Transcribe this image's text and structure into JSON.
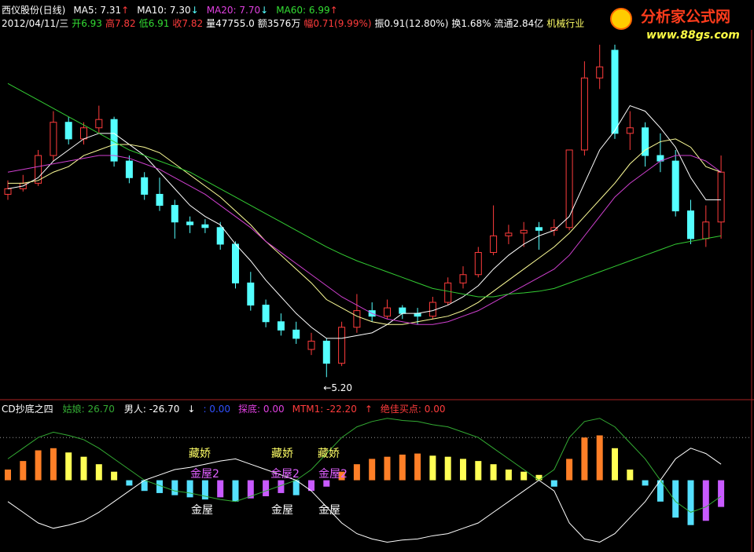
{
  "header": {
    "title": "西仪股份(日线)",
    "ma": [
      {
        "text": "MA5: 7.31",
        "arrow": "↑",
        "color": "#ffffff",
        "arrow_color": "#ff3c3c"
      },
      {
        "text": "MA10: 7.30",
        "arrow": "↓",
        "color": "#ffffff",
        "arrow_color": "#54ffff"
      },
      {
        "text": "MA20: 7.70",
        "arrow": "↓",
        "color": "#e040e0",
        "arrow_color": "#54ffff"
      },
      {
        "text": "MA60: 6.99",
        "arrow": "↑",
        "color": "#33dd33",
        "arrow_color": "#ff3c3c"
      }
    ],
    "quote": [
      {
        "text": "2012/04/11/三",
        "color": "#ffffff"
      },
      {
        "text": "开6.93",
        "color": "#33dd33"
      },
      {
        "text": "高7.82",
        "color": "#ff3c3c"
      },
      {
        "text": "低6.91",
        "color": "#33dd33"
      },
      {
        "text": "收7.82",
        "color": "#ff3c3c"
      },
      {
        "text": "量47755.0",
        "color": "#ffffff"
      },
      {
        "text": "额3576万",
        "color": "#ffffff"
      },
      {
        "text": "幅0.71(9.99%)",
        "color": "#ff3c3c"
      },
      {
        "text": "振0.91(12.80%)",
        "color": "#ffffff"
      },
      {
        "text": "换1.68%",
        "color": "#ffffff"
      },
      {
        "text": "流通2.84亿",
        "color": "#ffffff"
      },
      {
        "text": "机械行业",
        "color": "#ffff66"
      }
    ]
  },
  "logo": {
    "name": "分析家公式网",
    "url": "www.88gs.com"
  },
  "chart_data": [
    {
      "type": "candlestick",
      "up_color": "#ff3c3c",
      "down_color": "#54ffff",
      "ylim": [
        4.85,
        11.44
      ],
      "annotation": "←5.20",
      "open": [
        8.5,
        8.6,
        8.7,
        9.2,
        9.8,
        9.5,
        9.7,
        9.85,
        9.1,
        8.8,
        8.5,
        8.3,
        8.0,
        7.95,
        7.9,
        7.6,
        6.9,
        6.5,
        6.2,
        6.05,
        5.7,
        5.85,
        5.45,
        6.1,
        6.4,
        6.3,
        6.45,
        6.35,
        6.3,
        6.55,
        6.9,
        7.05,
        7.45,
        7.75,
        7.8,
        7.9,
        7.85,
        7.9,
        9.3,
        10.6,
        11.1,
        9.6,
        9.7,
        9.2,
        9.1,
        8.2,
        7.7,
        8.0
      ],
      "high": [
        8.75,
        8.85,
        9.3,
        10.0,
        9.9,
        9.8,
        10.1,
        9.9,
        9.2,
        8.9,
        8.8,
        8.4,
        8.1,
        8.05,
        8.0,
        7.65,
        7.1,
        6.6,
        6.35,
        6.2,
        6.0,
        5.9,
        6.2,
        6.7,
        6.55,
        6.6,
        6.5,
        6.45,
        6.65,
        7.0,
        7.2,
        7.55,
        8.3,
        7.95,
        8.0,
        8.0,
        8.05,
        9.3,
        10.9,
        11.2,
        11.2,
        10.0,
        9.8,
        9.6,
        9.3,
        8.4,
        8.3,
        9.2
      ],
      "low": [
        8.4,
        8.55,
        8.65,
        9.1,
        9.4,
        9.4,
        9.6,
        9.0,
        8.7,
        8.4,
        8.2,
        7.7,
        7.8,
        7.8,
        7.5,
        6.8,
        6.4,
        6.1,
        5.95,
        5.8,
        5.6,
        5.2,
        5.4,
        6.0,
        6.2,
        6.25,
        6.25,
        6.15,
        6.25,
        6.5,
        6.8,
        7.0,
        7.4,
        7.6,
        7.55,
        7.5,
        7.75,
        7.85,
        9.2,
        10.4,
        9.5,
        9.3,
        9.0,
        8.9,
        8.1,
        7.6,
        7.55,
        7.7
      ],
      "close": [
        8.6,
        8.7,
        9.2,
        9.8,
        9.5,
        9.7,
        9.85,
        9.1,
        8.8,
        8.5,
        8.3,
        8.0,
        7.95,
        7.9,
        7.6,
        6.9,
        6.5,
        6.2,
        6.05,
        5.9,
        5.85,
        5.45,
        6.1,
        6.4,
        6.3,
        6.45,
        6.35,
        6.3,
        6.55,
        6.9,
        7.05,
        7.45,
        7.75,
        7.8,
        7.85,
        7.85,
        7.9,
        9.3,
        10.6,
        10.8,
        9.6,
        9.7,
        9.2,
        9.1,
        8.2,
        7.7,
        8.0,
        8.9
      ],
      "series": [
        {
          "color": "#ffffff",
          "values": [
            8.6,
            8.65,
            8.8,
            9.1,
            9.3,
            9.5,
            9.6,
            9.6,
            9.4,
            9.2,
            8.9,
            8.6,
            8.3,
            8.1,
            7.95,
            7.6,
            7.3,
            6.95,
            6.65,
            6.35,
            6.1,
            5.9,
            5.9,
            5.95,
            6.0,
            6.15,
            6.35,
            6.35,
            6.4,
            6.5,
            6.65,
            6.85,
            7.15,
            7.4,
            7.6,
            7.75,
            7.85,
            8.1,
            8.7,
            9.3,
            9.65,
            10.1,
            10.0,
            9.7,
            9.35,
            8.8,
            8.4,
            8.4
          ]
        },
        {
          "color": "#ffff99",
          "values": [
            8.7,
            8.7,
            8.75,
            8.9,
            9.0,
            9.2,
            9.3,
            9.4,
            9.4,
            9.35,
            9.25,
            9.05,
            8.85,
            8.65,
            8.45,
            8.2,
            7.95,
            7.65,
            7.4,
            7.15,
            6.9,
            6.6,
            6.45,
            6.3,
            6.2,
            6.15,
            6.15,
            6.2,
            6.25,
            6.3,
            6.4,
            6.55,
            6.75,
            6.95,
            7.15,
            7.35,
            7.55,
            7.8,
            8.1,
            8.4,
            8.7,
            9.05,
            9.3,
            9.45,
            9.5,
            9.35,
            9.0,
            8.9
          ]
        },
        {
          "color": "#d040d0",
          "values": [
            8.9,
            8.95,
            9.0,
            9.05,
            9.1,
            9.15,
            9.2,
            9.2,
            9.15,
            9.05,
            8.95,
            8.8,
            8.65,
            8.5,
            8.3,
            8.1,
            7.9,
            7.65,
            7.45,
            7.25,
            7.05,
            6.85,
            6.65,
            6.5,
            6.35,
            6.25,
            6.2,
            6.15,
            6.15,
            6.2,
            6.3,
            6.4,
            6.55,
            6.7,
            6.85,
            7.0,
            7.15,
            7.4,
            7.75,
            8.1,
            8.45,
            8.7,
            8.9,
            9.1,
            9.2,
            9.2,
            9.1,
            8.9
          ]
        },
        {
          "color": "#33cc33",
          "values": [
            10.5,
            10.35,
            10.2,
            10.05,
            9.9,
            9.75,
            9.6,
            9.45,
            9.3,
            9.2,
            9.1,
            9.0,
            8.9,
            8.75,
            8.6,
            8.45,
            8.3,
            8.15,
            8.0,
            7.85,
            7.7,
            7.55,
            7.42,
            7.3,
            7.2,
            7.1,
            7.0,
            6.9,
            6.8,
            6.75,
            6.7,
            6.65,
            6.65,
            6.7,
            6.72,
            6.75,
            6.8,
            6.9,
            7.0,
            7.1,
            7.2,
            7.3,
            7.4,
            7.5,
            7.6,
            7.65,
            7.7,
            7.75
          ]
        }
      ]
    },
    {
      "type": "bar",
      "title": "CD抄底之四",
      "ylim": [
        -65,
        60
      ],
      "hline": 40,
      "colors": [
        "#ff7f27",
        "#ffff55",
        "#55e0ff",
        "#c85aff"
      ],
      "values": [
        10,
        18,
        28,
        30,
        26,
        22,
        15,
        8,
        -5,
        -10,
        -12,
        -14,
        -16,
        -18,
        -16,
        -20,
        -17,
        -15,
        -12,
        -14,
        -10,
        -6,
        8,
        15,
        20,
        22,
        24,
        25,
        23,
        22,
        20,
        18,
        15,
        10,
        8,
        5,
        -6,
        20,
        40,
        42,
        30,
        10,
        -5,
        -20,
        -35,
        -42,
        -38,
        -25
      ],
      "series": [
        {
          "label": "姑娘: 26.70",
          "color": "#33aa33",
          "values": [
            20,
            30,
            40,
            45,
            42,
            38,
            30,
            20,
            10,
            0,
            -5,
            -10,
            -12,
            -15,
            -18,
            -20,
            -15,
            -10,
            -5,
            0,
            10,
            25,
            40,
            50,
            55,
            58,
            56,
            55,
            52,
            50,
            45,
            40,
            30,
            20,
            10,
            0,
            10,
            40,
            55,
            58,
            50,
            35,
            20,
            0,
            -20,
            -30,
            -25,
            -15
          ]
        },
        {
          "label": "男人: -26.70",
          "color": "#ffffff",
          "values": [
            -20,
            -30,
            -40,
            -45,
            -42,
            -38,
            -30,
            -20,
            -10,
            0,
            5,
            10,
            12,
            15,
            18,
            20,
            15,
            10,
            5,
            0,
            -10,
            -25,
            -40,
            -50,
            -55,
            -58,
            -56,
            -55,
            -52,
            -50,
            -45,
            -40,
            -30,
            -20,
            -10,
            0,
            -10,
            -40,
            -55,
            -58,
            -50,
            -35,
            -20,
            0,
            20,
            30,
            25,
            15
          ]
        }
      ],
      "readouts": [
        {
          "text": "↓",
          "color": "#ffffff"
        },
        {
          "text": ": 0.00",
          "color": "#3050ff"
        },
        {
          "text": "探底: 0.00",
          "color": "#e040e0"
        },
        {
          "text": "MTM1: -22.20",
          "color": "#ff3c3c"
        },
        {
          "text": "↑",
          "color": "#ff3c3c"
        },
        {
          "text": "绝佳买点: 0.00",
          "color": "#ff3c3c"
        }
      ],
      "annotations": [
        {
          "text": "藏娇",
          "color": "#ffff66"
        },
        {
          "text": "藏娇",
          "color": "#ffff66"
        },
        {
          "text": "藏娇",
          "color": "#ffff66"
        },
        {
          "text": "金屋2",
          "color": "#e060ff"
        },
        {
          "text": "金屋2",
          "color": "#e060ff"
        },
        {
          "text": "金屋2",
          "color": "#e060ff"
        },
        {
          "text": "金屋",
          "color": "#ffffff"
        },
        {
          "text": "金屋",
          "color": "#ffffff"
        },
        {
          "text": "金屋",
          "color": "#ffffff"
        }
      ]
    }
  ]
}
